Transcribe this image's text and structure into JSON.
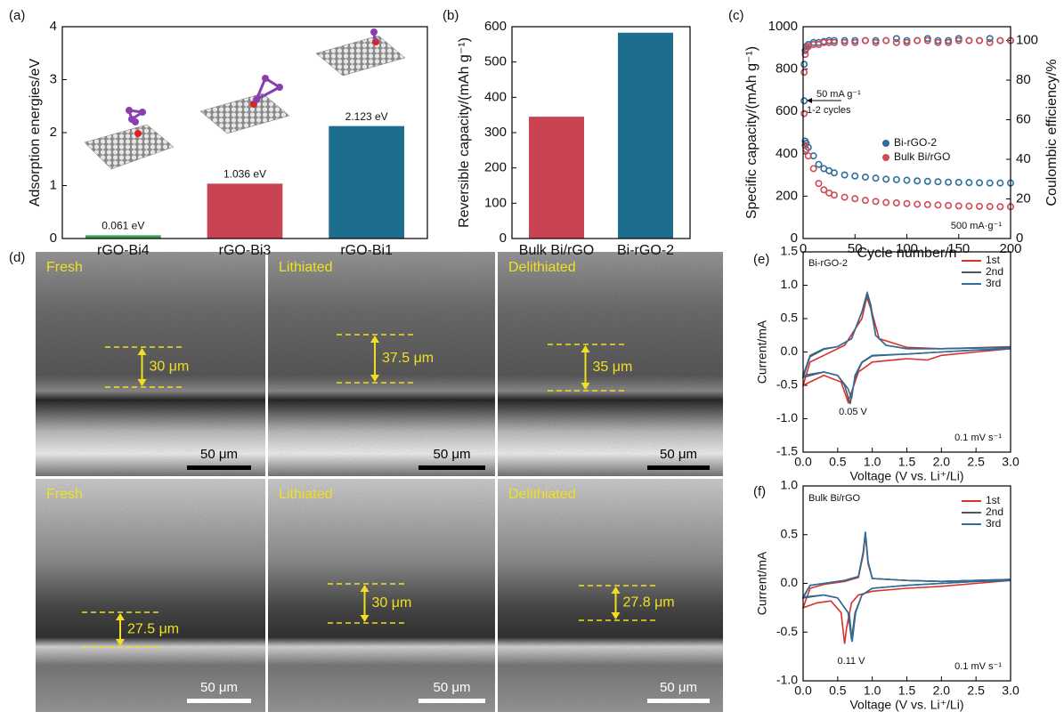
{
  "chart_data": [
    {
      "type": "bar",
      "panel_label": "(a)",
      "ylabel": "Adsorption energies/eV",
      "categories": [
        "rGO-Bi4",
        "rGO-Bi3",
        "rGO-Bi1"
      ],
      "values": [
        0.061,
        1.036,
        2.123
      ],
      "value_labels": [
        "0.061 eV",
        "1.036 eV",
        "2.123 eV"
      ],
      "colors": [
        "#3a9e4b",
        "#c94452",
        "#1d6d8c"
      ],
      "ylim": [
        0,
        4
      ],
      "yticks": [
        0,
        1,
        2,
        3,
        4
      ]
    },
    {
      "type": "bar",
      "panel_label": "(b)",
      "ylabel": "Reversible capacity/(mAh g⁻¹)",
      "categories": [
        "Bulk Bi/rGO",
        "Bi-rGO-2"
      ],
      "values": [
        345,
        583
      ],
      "colors": [
        "#c94452",
        "#1d6d8c"
      ],
      "ylim": [
        0,
        600
      ],
      "yticks": [
        0,
        100,
        200,
        300,
        400,
        500,
        600
      ]
    },
    {
      "type": "scatter",
      "panel_label": "(c)",
      "xlabel": "Cycle number/n",
      "ylabel": "Specific capacity/(mAh g⁻¹)",
      "y2label": "Coulombic efficiency/%",
      "annotations": [
        "50 mA g⁻¹",
        "1-2 cycles",
        "500 mA·g⁻¹"
      ],
      "x": [
        1,
        2,
        3,
        5,
        10,
        15,
        20,
        25,
        30,
        40,
        50,
        60,
        70,
        80,
        90,
        100,
        110,
        120,
        130,
        140,
        150,
        160,
        170,
        180,
        190,
        200
      ],
      "series": [
        {
          "name": "Bi-rGO-2",
          "color": "#2d6f9c",
          "values": [
            650,
            460,
            450,
            430,
            390,
            350,
            330,
            320,
            310,
            300,
            295,
            290,
            285,
            280,
            278,
            275,
            272,
            270,
            268,
            266,
            265,
            264,
            263,
            262,
            262,
            262
          ]
        },
        {
          "name": "Bulk Bi/rGO",
          "color": "#d04a55",
          "values": [
            590,
            440,
            420,
            390,
            330,
            260,
            230,
            215,
            205,
            195,
            188,
            180,
            175,
            170,
            168,
            165,
            162,
            160,
            158,
            156,
            154,
            153,
            152,
            151,
            150,
            150
          ]
        },
        {
          "color": "#2d6f9c",
          "axis": "y2",
          "values": [
            88,
            95,
            97,
            98,
            99,
            99,
            99.5,
            100,
            100,
            100,
            100,
            100,
            100,
            100,
            101,
            100,
            100,
            101,
            100,
            100,
            101,
            100,
            100,
            101,
            100,
            100
          ]
        },
        {
          "color": "#d04a55",
          "axis": "y2",
          "values": [
            84,
            93,
            96,
            97,
            98,
            98,
            99,
            99,
            99,
            99,
            99,
            100,
            99,
            100,
            99,
            99,
            100,
            100,
            99,
            99,
            100,
            100,
            100,
            99,
            100,
            100
          ]
        }
      ],
      "xlim": [
        0,
        200
      ],
      "xticks": [
        0,
        50,
        100,
        150,
        200
      ],
      "ylim": [
        0,
        1000
      ],
      "yticks": [
        0,
        200,
        400,
        600,
        800,
        1000
      ],
      "y2lim": [
        0,
        107
      ],
      "y2ticks": [
        0,
        20,
        40,
        60,
        80,
        100
      ]
    },
    {
      "type": "line",
      "panel_label": "(e)",
      "xlabel": "Voltage (V vs. Li⁺/Li)",
      "ylabel": "Current/mA",
      "annotations": [
        "Bi-rGO-2",
        "0.05 V",
        "0.1 mV s⁻¹"
      ],
      "series": [
        {
          "name": "1st",
          "color": "#d9302c",
          "x": [
            3.0,
            2.5,
            2.0,
            1.8,
            1.5,
            1.0,
            0.8,
            0.7,
            0.65,
            0.55,
            0.3,
            0.0,
            0.1,
            0.3,
            0.6,
            0.85,
            0.92,
            0.98,
            1.1,
            1.5,
            2.0,
            3.0
          ],
          "values": [
            0.05,
            0.0,
            -0.05,
            -0.12,
            -0.1,
            -0.15,
            -0.3,
            -0.6,
            -0.75,
            -0.45,
            -0.35,
            -0.5,
            -0.15,
            -0.05,
            0.1,
            0.5,
            0.82,
            0.65,
            0.2,
            0.07,
            0.05,
            0.08
          ]
        },
        {
          "name": "2nd",
          "color": "#555555",
          "x": [
            3.0,
            2.5,
            2.0,
            1.5,
            1.0,
            0.85,
            0.75,
            0.68,
            0.6,
            0.5,
            0.3,
            0.0,
            0.1,
            0.3,
            0.5,
            0.7,
            0.85,
            0.93,
            0.98,
            1.05,
            1.2,
            1.5,
            2.0,
            3.0
          ],
          "values": [
            0.05,
            0.03,
            0.0,
            -0.03,
            -0.06,
            -0.16,
            -0.38,
            -0.78,
            -0.5,
            -0.35,
            -0.3,
            -0.38,
            -0.07,
            0.04,
            0.08,
            0.2,
            0.6,
            0.88,
            0.7,
            0.25,
            0.1,
            0.05,
            0.05,
            0.07
          ]
        },
        {
          "name": "3rd",
          "color": "#2e6e9a",
          "x": [
            3.0,
            2.5,
            2.0,
            1.5,
            1.0,
            0.85,
            0.75,
            0.7,
            0.65,
            0.5,
            0.3,
            0.0,
            0.1,
            0.3,
            0.5,
            0.7,
            0.85,
            0.92,
            0.97,
            1.05,
            1.2,
            1.5,
            2.0,
            3.0
          ],
          "values": [
            0.05,
            0.03,
            0.0,
            -0.03,
            -0.05,
            -0.15,
            -0.35,
            -0.7,
            -0.55,
            -0.35,
            -0.3,
            -0.35,
            -0.05,
            0.05,
            0.08,
            0.2,
            0.6,
            0.87,
            0.7,
            0.25,
            0.1,
            0.05,
            0.05,
            0.07
          ]
        }
      ],
      "xlim": [
        0,
        3
      ],
      "xticks": [
        {
          "value": 0,
          "label": "0.0"
        },
        0.5,
        {
          "value": 1,
          "label": "1.0"
        },
        1.5,
        {
          "value": 2,
          "label": "2.0"
        },
        2.5,
        {
          "value": 3,
          "label": "3.0"
        }
      ],
      "ylim": [
        -1.5,
        1.5
      ],
      "yticks": [
        -1.5,
        {
          "value": -1,
          "label": "-1.0"
        },
        -0.5,
        {
          "value": 0,
          "label": "0.0"
        },
        0.5,
        {
          "value": 1,
          "label": "1.0"
        },
        1.5
      ]
    },
    {
      "type": "line",
      "panel_label": "(f)",
      "xlabel": "Voltage (V vs. Li⁺/Li)",
      "ylabel": "Current/mA",
      "annotations": [
        "Bulk Bi/rGO",
        "0.11 V",
        "0.1 mV s⁻¹"
      ],
      "series": [
        {
          "name": "1st",
          "color": "#d9302c",
          "x": [
            3.0,
            2.5,
            2.0,
            1.5,
            1.0,
            0.8,
            0.7,
            0.63,
            0.6,
            0.55,
            0.4,
            0.2,
            0.0,
            0.1,
            0.3,
            0.6,
            0.8,
            0.87,
            0.9,
            0.94,
            1.0,
            1.5,
            2.0,
            3.0
          ],
          "values": [
            0.03,
            0.0,
            -0.03,
            -0.05,
            -0.08,
            -0.12,
            -0.2,
            -0.45,
            -0.62,
            -0.3,
            -0.18,
            -0.2,
            -0.25,
            -0.05,
            -0.01,
            0.02,
            0.06,
            0.3,
            0.5,
            0.2,
            0.05,
            0.03,
            0.02,
            0.04
          ]
        },
        {
          "name": "2nd",
          "color": "#555555",
          "x": [
            3.0,
            2.5,
            2.0,
            1.5,
            1.0,
            0.85,
            0.75,
            0.7,
            0.65,
            0.5,
            0.3,
            0.0,
            0.1,
            0.3,
            0.6,
            0.8,
            0.87,
            0.9,
            0.94,
            1.0,
            1.5,
            2.0,
            3.0
          ],
          "values": [
            0.03,
            0.02,
            0.0,
            -0.02,
            -0.05,
            -0.12,
            -0.3,
            -0.58,
            -0.3,
            -0.15,
            -0.12,
            -0.15,
            -0.02,
            0.0,
            0.03,
            0.07,
            0.32,
            0.52,
            0.22,
            0.05,
            0.03,
            0.02,
            0.04
          ]
        },
        {
          "name": "3rd",
          "color": "#2e6e9a",
          "x": [
            3.0,
            2.5,
            2.0,
            1.5,
            1.0,
            0.85,
            0.76,
            0.71,
            0.67,
            0.5,
            0.3,
            0.0,
            0.1,
            0.3,
            0.6,
            0.8,
            0.87,
            0.9,
            0.94,
            1.0,
            1.5,
            2.0,
            3.0
          ],
          "values": [
            0.03,
            0.02,
            0.0,
            -0.02,
            -0.05,
            -0.12,
            -0.3,
            -0.6,
            -0.32,
            -0.15,
            -0.12,
            -0.14,
            -0.02,
            0.0,
            0.03,
            0.07,
            0.33,
            0.53,
            0.22,
            0.05,
            0.03,
            0.02,
            0.04
          ]
        }
      ],
      "xlim": [
        0,
        3
      ],
      "xticks": [
        {
          "value": 0,
          "label": "0.0"
        },
        0.5,
        {
          "value": 1,
          "label": "1.0"
        },
        1.5,
        {
          "value": 2,
          "label": "2.0"
        },
        2.5,
        {
          "value": 3,
          "label": "3.0"
        }
      ],
      "ylim": [
        -1,
        1
      ],
      "yticks": [
        {
          "value": -1,
          "label": "-1.0"
        },
        -0.5,
        {
          "value": 0,
          "label": "0.0"
        },
        0.5,
        {
          "value": 1,
          "label": "1.0"
        }
      ]
    }
  ],
  "sem_panel": {
    "panel_label": "(d)",
    "images": [
      {
        "label": "Fresh",
        "thickness": "30 μm",
        "scale_bar": "50 μm"
      },
      {
        "label": "Lithiated",
        "thickness": "37.5 μm",
        "scale_bar": "50 μm"
      },
      {
        "label": "Delithiated",
        "thickness": "35 μm",
        "scale_bar": "50 μm"
      },
      {
        "label": "Fresh",
        "thickness": "27.5 μm",
        "scale_bar": "50 μm"
      },
      {
        "label": "Lithiated",
        "thickness": "30 μm",
        "scale_bar": "50 μm"
      },
      {
        "label": "Delithiated",
        "thickness": "27.8 μm",
        "scale_bar": "50 μm"
      }
    ]
  }
}
